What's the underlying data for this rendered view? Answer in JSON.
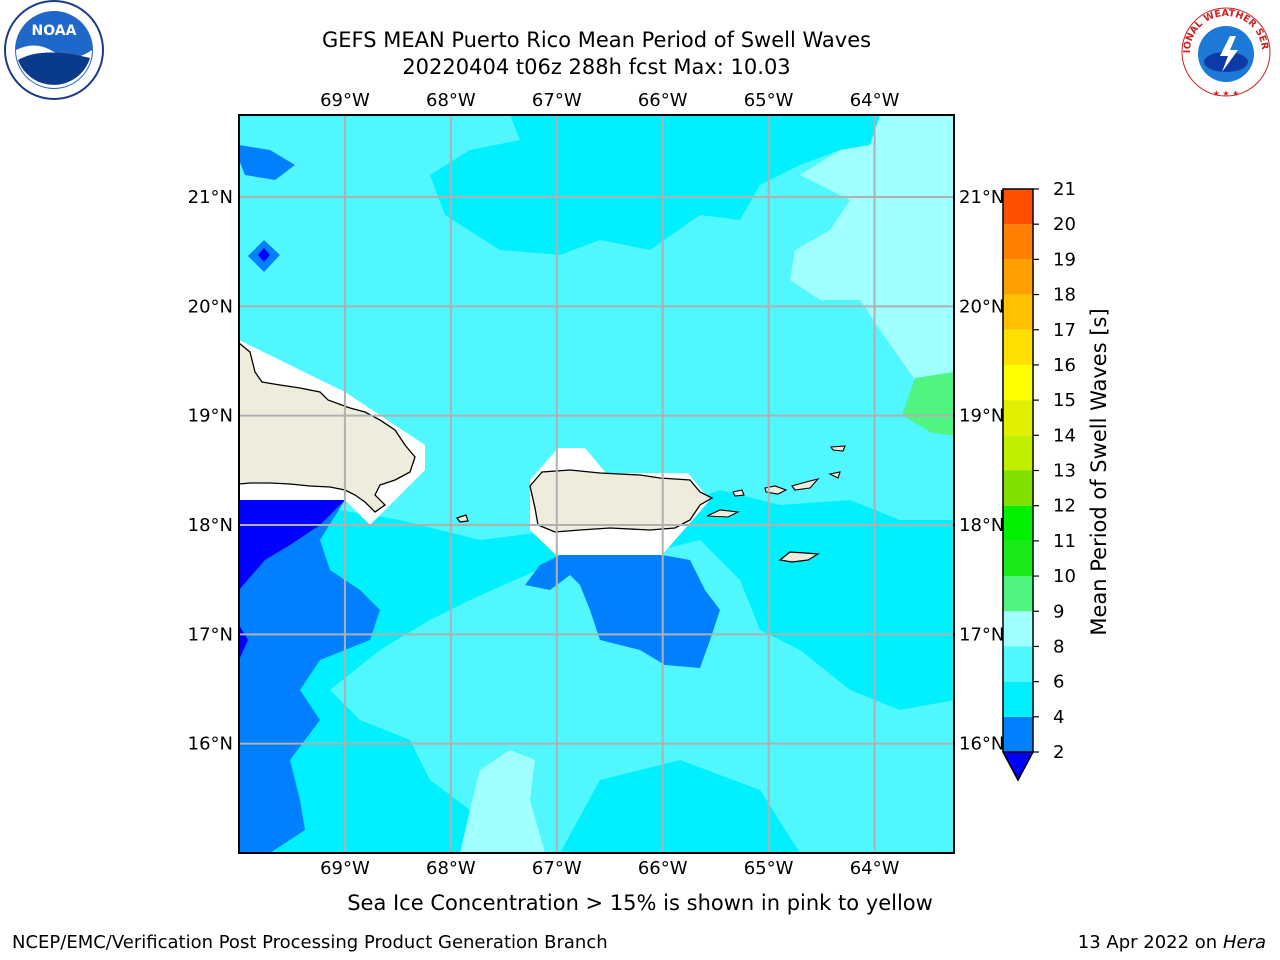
{
  "title": {
    "line1": "GEFS MEAN Puerto Rico Mean Period of Swell Waves",
    "line2": "20220404 t06z 288h fcst   Max: 10.03"
  },
  "map": {
    "lon_labels": [
      "69°W",
      "68°W",
      "67°W",
      "66°W",
      "65°W",
      "64°W"
    ],
    "lat_labels": [
      "21°N",
      "20°N",
      "19°N",
      "18°N",
      "17°N",
      "16°N"
    ],
    "lon_values": [
      -69,
      -68,
      -67,
      -66,
      -65,
      -64
    ],
    "lat_values": [
      21,
      20,
      19,
      18,
      17,
      16
    ],
    "lon_range": [
      -70,
      -63.25
    ],
    "lat_range": [
      15,
      21.75
    ],
    "grid": true,
    "land_color": "#eeecdc",
    "grid_color": "#b0b0b0"
  },
  "colorbar": {
    "label": "Mean Period of Swell Waves [s]",
    "ticks": [
      "2",
      "4",
      "6",
      "8",
      "9",
      "10",
      "11",
      "12",
      "13",
      "14",
      "15",
      "16",
      "17",
      "18",
      "19",
      "20",
      "21"
    ],
    "colors": [
      "#0080ff",
      "#00f0ff",
      "#50f7ff",
      "#a0ffff",
      "#50f480",
      "#18ea18",
      "#00f000",
      "#80e000",
      "#c0f000",
      "#e0f000",
      "#ffff00",
      "#ffe000",
      "#ffc000",
      "#ffa000",
      "#ff8000",
      "#ff5000",
      "#ff2000",
      "#ff0000"
    ],
    "under_color": "#0000ff",
    "extend": "min"
  },
  "caption": "Sea Ice Concentration > 15% is shown in pink to yellow",
  "footer": {
    "left": "NCEP/EMC/Verification Post Processing Product Generation Branch",
    "right_date": "13 Apr 2022 on",
    "right_host": "Hera"
  },
  "logos": {
    "noaa": "NOAA",
    "nws_ring": "NATIONAL WEATHER SERVICE"
  }
}
